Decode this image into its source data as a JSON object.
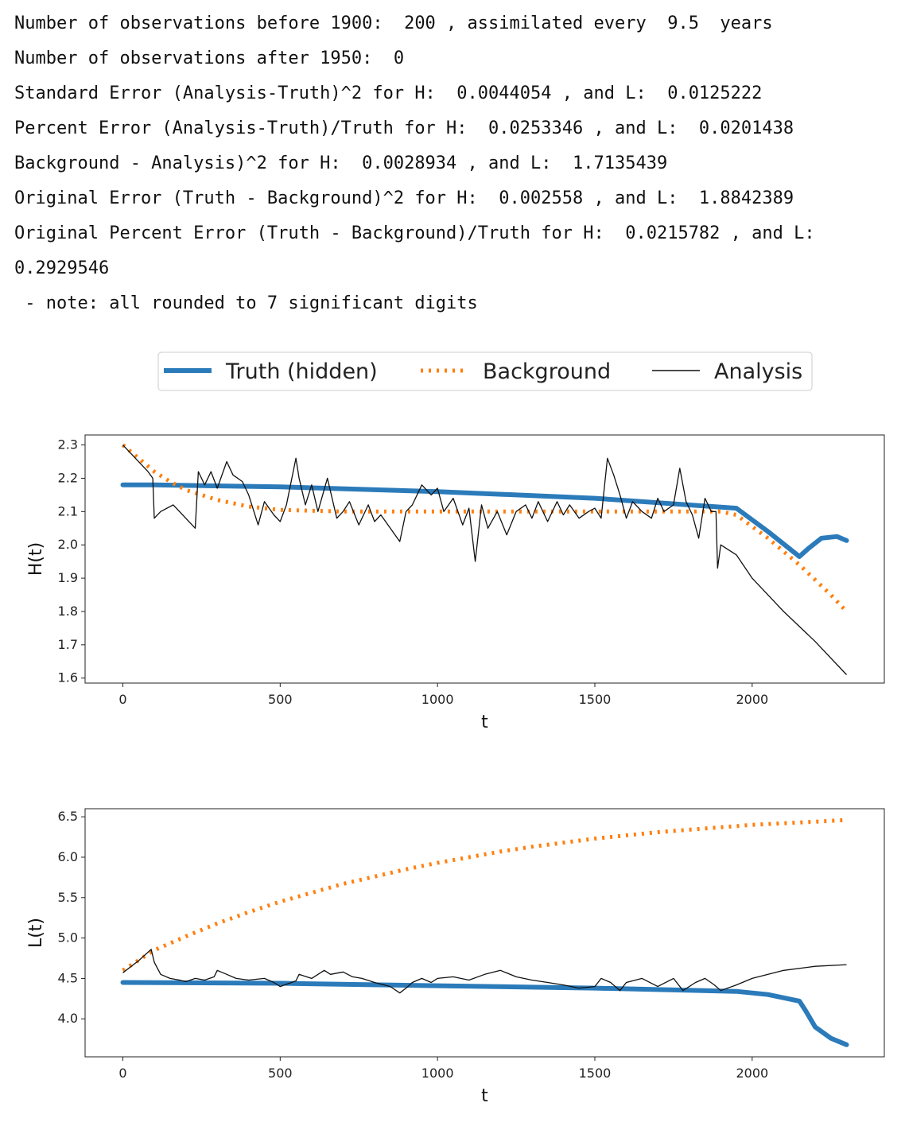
{
  "output": {
    "lines": [
      "Number of observations before 1900:  200 , assimilated every  9.5  years",
      "Number of observations after 1950:  0",
      "Standard Error (Analysis-Truth)^2 for H:  0.0044054 , and L:  0.0125222",
      "Percent Error (Analysis-Truth)/Truth for H:  0.0253346 , and L:  0.0201438",
      "Background - Analysis)^2 for H:  0.0028934 , and L:  1.7135439",
      "Original Error (Truth - Background)^2 for H:  0.002558 , and L:  1.8842389",
      "Original Percent Error (Truth - Background)/Truth for H:  0.0215782 , and L:",
      "0.2929546",
      " - note: all rounded to 7 significant digits"
    ]
  },
  "colors": {
    "truth": "#2b7bba",
    "background": "#ff7f0e",
    "analysis": "#111111"
  },
  "legend": [
    "Truth (hidden)",
    "Background",
    "Analysis"
  ],
  "chart_data": [
    {
      "type": "line",
      "xlabel": "t",
      "ylabel": "H(t)",
      "xlim": [
        -120,
        2420
      ],
      "ylim": [
        1.585,
        2.33
      ],
      "xticks": [
        0,
        500,
        1000,
        1500,
        2000
      ],
      "yticks": [
        1.6,
        1.7,
        1.8,
        1.9,
        2.0,
        2.1,
        2.2,
        2.3
      ],
      "ytick_labels": [
        "1.6",
        "1.7",
        "1.8",
        "1.9",
        "2.0",
        "2.1",
        "2.2",
        "2.3"
      ],
      "series": [
        {
          "name": "Truth (hidden)",
          "x": [
            0,
            100,
            500,
            1000,
            1500,
            1950,
            2050,
            2150,
            2180,
            2220,
            2270,
            2300
          ],
          "y": [
            2.18,
            2.18,
            2.174,
            2.16,
            2.14,
            2.11,
            2.04,
            1.965,
            1.99,
            2.02,
            2.025,
            2.013
          ]
        },
        {
          "name": "Background",
          "x": [
            0,
            50,
            100,
            150,
            200,
            300,
            400,
            500,
            700,
            1000,
            1300,
            1600,
            1900,
            1950,
            2050,
            2150,
            2250,
            2300
          ],
          "y": [
            2.3,
            2.26,
            2.22,
            2.19,
            2.165,
            2.135,
            2.115,
            2.105,
            2.1,
            2.1,
            2.1,
            2.1,
            2.1,
            2.09,
            2.02,
            1.94,
            1.85,
            1.8
          ]
        },
        {
          "name": "Analysis",
          "x": [
            0,
            20,
            40,
            60,
            80,
            95,
            100,
            120,
            160,
            200,
            230,
            240,
            260,
            280,
            300,
            330,
            350,
            380,
            400,
            430,
            450,
            480,
            500,
            520,
            550,
            560,
            580,
            600,
            620,
            650,
            680,
            700,
            720,
            750,
            780,
            800,
            820,
            850,
            880,
            900,
            920,
            950,
            980,
            1000,
            1020,
            1050,
            1080,
            1100,
            1120,
            1140,
            1160,
            1190,
            1220,
            1250,
            1280,
            1300,
            1320,
            1350,
            1380,
            1400,
            1420,
            1450,
            1480,
            1500,
            1520,
            1540,
            1560,
            1580,
            1600,
            1620,
            1650,
            1680,
            1700,
            1720,
            1750,
            1770,
            1790,
            1810,
            1830,
            1850,
            1870,
            1885,
            1890,
            1900,
            1950,
            2000,
            2100,
            2200,
            2300
          ],
          "y": [
            2.3,
            2.28,
            2.26,
            2.24,
            2.22,
            2.2,
            2.08,
            2.1,
            2.12,
            2.08,
            2.05,
            2.22,
            2.18,
            2.22,
            2.17,
            2.25,
            2.21,
            2.19,
            2.15,
            2.06,
            2.13,
            2.09,
            2.07,
            2.12,
            2.26,
            2.2,
            2.12,
            2.18,
            2.1,
            2.2,
            2.08,
            2.1,
            2.13,
            2.06,
            2.12,
            2.07,
            2.09,
            2.05,
            2.01,
            2.1,
            2.12,
            2.18,
            2.15,
            2.17,
            2.1,
            2.14,
            2.06,
            2.11,
            1.95,
            2.12,
            2.05,
            2.1,
            2.03,
            2.1,
            2.12,
            2.08,
            2.13,
            2.07,
            2.13,
            2.09,
            2.12,
            2.08,
            2.1,
            2.11,
            2.08,
            2.26,
            2.21,
            2.15,
            2.08,
            2.13,
            2.1,
            2.08,
            2.14,
            2.1,
            2.12,
            2.23,
            2.13,
            2.09,
            2.02,
            2.14,
            2.1,
            2.1,
            1.93,
            2.0,
            1.97,
            1.9,
            1.8,
            1.71,
            1.61
          ]
        }
      ]
    },
    {
      "type": "line",
      "xlabel": "t",
      "ylabel": "L(t)",
      "xlim": [
        -120,
        2420
      ],
      "ylim": [
        3.53,
        6.6
      ],
      "xticks": [
        0,
        500,
        1000,
        1500,
        2000
      ],
      "yticks": [
        4.0,
        4.5,
        5.0,
        5.5,
        6.0,
        6.5
      ],
      "ytick_labels": [
        "4.0",
        "4.5",
        "5.0",
        "5.5",
        "6.0",
        "6.5"
      ],
      "series": [
        {
          "name": "Truth (hidden)",
          "x": [
            0,
            500,
            1000,
            1500,
            1950,
            2050,
            2150,
            2170,
            2200,
            2250,
            2300
          ],
          "y": [
            4.45,
            4.44,
            4.41,
            4.38,
            4.34,
            4.3,
            4.22,
            4.1,
            3.9,
            3.76,
            3.68
          ]
        },
        {
          "name": "Background",
          "x": [
            0,
            100,
            200,
            300,
            400,
            500,
            600,
            700,
            800,
            900,
            1000,
            1100,
            1200,
            1300,
            1400,
            1500,
            1600,
            1700,
            1800,
            1900,
            2000,
            2100,
            2200,
            2300
          ],
          "y": [
            4.6,
            4.85,
            5.02,
            5.18,
            5.32,
            5.45,
            5.56,
            5.67,
            5.76,
            5.85,
            5.93,
            6.0,
            6.07,
            6.13,
            6.18,
            6.23,
            6.27,
            6.31,
            6.34,
            6.37,
            6.4,
            6.42,
            6.44,
            6.46
          ]
        },
        {
          "name": "Analysis",
          "x": [
            0,
            50,
            90,
            100,
            120,
            150,
            180,
            200,
            230,
            260,
            290,
            300,
            330,
            360,
            400,
            450,
            480,
            500,
            550,
            560,
            600,
            640,
            660,
            700,
            730,
            760,
            800,
            850,
            880,
            900,
            920,
            950,
            980,
            1000,
            1050,
            1100,
            1150,
            1200,
            1250,
            1300,
            1350,
            1400,
            1450,
            1500,
            1520,
            1550,
            1580,
            1600,
            1650,
            1700,
            1750,
            1780,
            1820,
            1850,
            1880,
            1900,
            1950,
            2000,
            2100,
            2200,
            2300
          ],
          "y": [
            4.57,
            4.72,
            4.86,
            4.7,
            4.55,
            4.5,
            4.48,
            4.46,
            4.5,
            4.48,
            4.52,
            4.6,
            4.55,
            4.5,
            4.48,
            4.5,
            4.45,
            4.4,
            4.47,
            4.55,
            4.5,
            4.6,
            4.55,
            4.58,
            4.52,
            4.5,
            4.45,
            4.4,
            4.32,
            4.38,
            4.45,
            4.5,
            4.45,
            4.5,
            4.52,
            4.48,
            4.55,
            4.6,
            4.52,
            4.48,
            4.45,
            4.42,
            4.38,
            4.4,
            4.5,
            4.45,
            4.35,
            4.45,
            4.5,
            4.4,
            4.5,
            4.35,
            4.45,
            4.5,
            4.42,
            4.35,
            4.42,
            4.5,
            4.6,
            4.65,
            4.67
          ]
        }
      ]
    }
  ]
}
